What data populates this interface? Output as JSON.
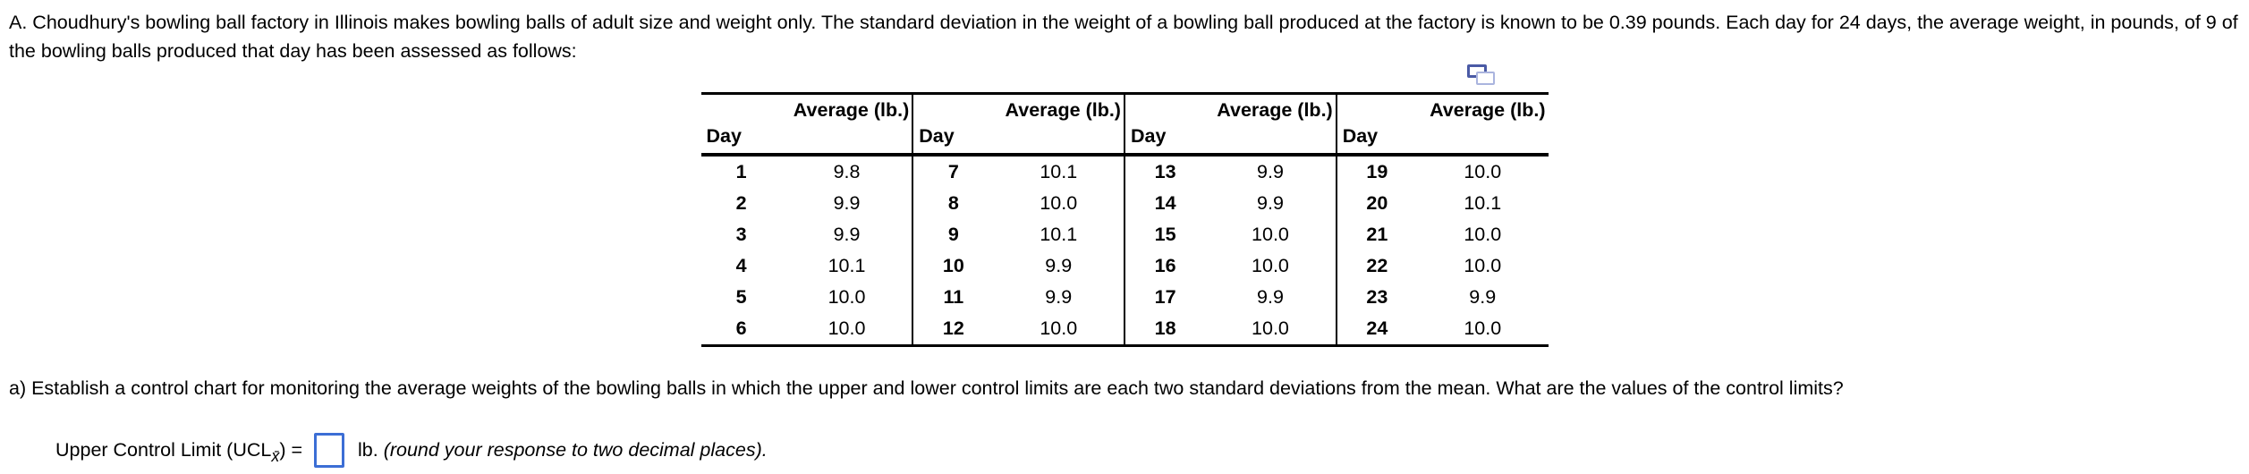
{
  "problem": {
    "intro": "A. Choudhury's bowling ball factory in Illinois makes bowling balls of adult size and weight only. The standard deviation in the weight of a bowling ball produced at the factory is known to be 0.39 pounds. Each day for 24 days, the average weight, in pounds, of 9 of the bowling balls produced that day has been assessed as follows:",
    "part_a": "a) Establish a control chart for monitoring the average weights of the bowling balls in which the upper and lower control limits are each two standard deviations from the mean. What are the values of the control limits?"
  },
  "table": {
    "copy_icon": "copy-icon",
    "headers": {
      "day": "Day",
      "avg": "Average (lb.)"
    },
    "groups": [
      {
        "rows": [
          [
            1,
            "9.8"
          ],
          [
            2,
            "9.9"
          ],
          [
            3,
            "9.9"
          ],
          [
            4,
            "10.1"
          ],
          [
            5,
            "10.0"
          ],
          [
            6,
            "10.0"
          ]
        ]
      },
      {
        "rows": [
          [
            7,
            "10.1"
          ],
          [
            8,
            "10.0"
          ],
          [
            9,
            "10.1"
          ],
          [
            10,
            "9.9"
          ],
          [
            11,
            "9.9"
          ],
          [
            12,
            "10.0"
          ]
        ]
      },
      {
        "rows": [
          [
            13,
            "9.9"
          ],
          [
            14,
            "9.9"
          ],
          [
            15,
            "10.0"
          ],
          [
            16,
            "10.0"
          ],
          [
            17,
            "9.9"
          ],
          [
            18,
            "10.0"
          ]
        ]
      },
      {
        "rows": [
          [
            19,
            "10.0"
          ],
          [
            20,
            "10.1"
          ],
          [
            21,
            "10.0"
          ],
          [
            22,
            "10.0"
          ],
          [
            23,
            "9.9"
          ],
          [
            24,
            "10.0"
          ]
        ]
      }
    ]
  },
  "answer": {
    "label_prefix": "Upper Control Limit (UCL",
    "label_subscript": "x̄",
    "label_close": ") = ",
    "input_value": "",
    "unit": " lb. ",
    "hint": "(round your response to two decimal places)."
  },
  "colors": {
    "input_border": "#3c6ed5",
    "icon_dark": "#4a5aa5",
    "icon_light": "#aab4de",
    "text": "#000000",
    "background": "#ffffff"
  }
}
